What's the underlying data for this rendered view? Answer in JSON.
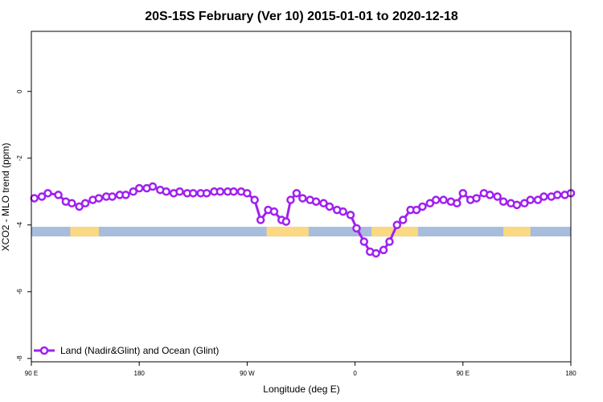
{
  "chart_data": {
    "type": "line",
    "title": "20S-15S February (Ver 10)   2015-01-01 to 2020-12-18",
    "xlabel": "Longitude (deg E)",
    "ylabel": "XCO2 - MLO trend (ppm)",
    "xlim": [
      0,
      360
    ],
    "ylim": [
      -8.1,
      1.8
    ],
    "x_ticks": [
      {
        "value": 0,
        "label": "90 E"
      },
      {
        "value": 72,
        "label": "180"
      },
      {
        "value": 144,
        "label": "90 W"
      },
      {
        "value": 216,
        "label": "0"
      },
      {
        "value": 288,
        "label": "90 E"
      },
      {
        "value": 360,
        "label": "180"
      }
    ],
    "y_ticks": [
      {
        "value": 0,
        "label": "0"
      },
      {
        "value": -2,
        "label": "-2"
      },
      {
        "value": -4,
        "label": "-4"
      },
      {
        "value": -6,
        "label": "-6"
      },
      {
        "value": -8,
        "label": "-8"
      }
    ],
    "legend": {
      "position": "bottom-left"
    },
    "series": [
      {
        "name": "Land (Nadir&Glint) and Ocean (Glint)",
        "color": "#a020f0",
        "x": [
          2,
          7,
          11,
          18,
          23,
          27,
          32,
          36,
          41,
          45,
          50,
          54,
          59,
          63,
          68,
          72,
          77,
          81,
          86,
          90,
          95,
          99,
          104,
          108,
          113,
          117,
          122,
          126,
          131,
          135,
          140,
          144,
          149,
          153,
          158,
          162,
          167,
          170,
          173,
          177,
          181,
          186,
          190,
          195,
          199,
          204,
          208,
          213,
          217,
          222,
          226,
          230,
          235,
          239,
          244,
          248,
          253,
          257,
          261,
          266,
          270,
          275,
          280,
          284,
          288,
          293,
          297,
          302,
          306,
          311,
          315,
          320,
          324,
          329,
          333,
          338,
          342,
          347,
          351,
          356,
          360
        ],
        "y": [
          -3.2,
          -3.15,
          -3.05,
          -3.1,
          -3.3,
          -3.35,
          -3.45,
          -3.35,
          -3.25,
          -3.2,
          -3.15,
          -3.15,
          -3.1,
          -3.1,
          -3.0,
          -2.9,
          -2.9,
          -2.85,
          -2.95,
          -3.0,
          -3.05,
          -3.0,
          -3.05,
          -3.05,
          -3.05,
          -3.05,
          -3.0,
          -3.0,
          -3.0,
          -3.0,
          -3.0,
          -3.05,
          -3.25,
          -3.85,
          -3.55,
          -3.6,
          -3.85,
          -3.9,
          -3.25,
          -3.05,
          -3.2,
          -3.25,
          -3.3,
          -3.35,
          -3.45,
          -3.55,
          -3.6,
          -3.7,
          -4.1,
          -4.5,
          -4.8,
          -4.85,
          -4.75,
          -4.5,
          -4.0,
          -3.85,
          -3.55,
          -3.55,
          -3.45,
          -3.35,
          -3.25,
          -3.25,
          -3.3,
          -3.35,
          -3.05,
          -3.25,
          -3.2,
          -3.05,
          -3.1,
          -3.15,
          -3.3,
          -3.35,
          -3.4,
          -3.35,
          -3.25,
          -3.25,
          -3.15,
          -3.15,
          -3.1,
          -3.1,
          -3.05
        ]
      }
    ],
    "surface_band": {
      "y_center": -4.2,
      "ocean_color": "#a8bcdb",
      "land_color": "#fbd982",
      "land_segments": [
        [
          26,
          45
        ],
        [
          157,
          185
        ],
        [
          227,
          258
        ],
        [
          315,
          333
        ]
      ]
    }
  }
}
